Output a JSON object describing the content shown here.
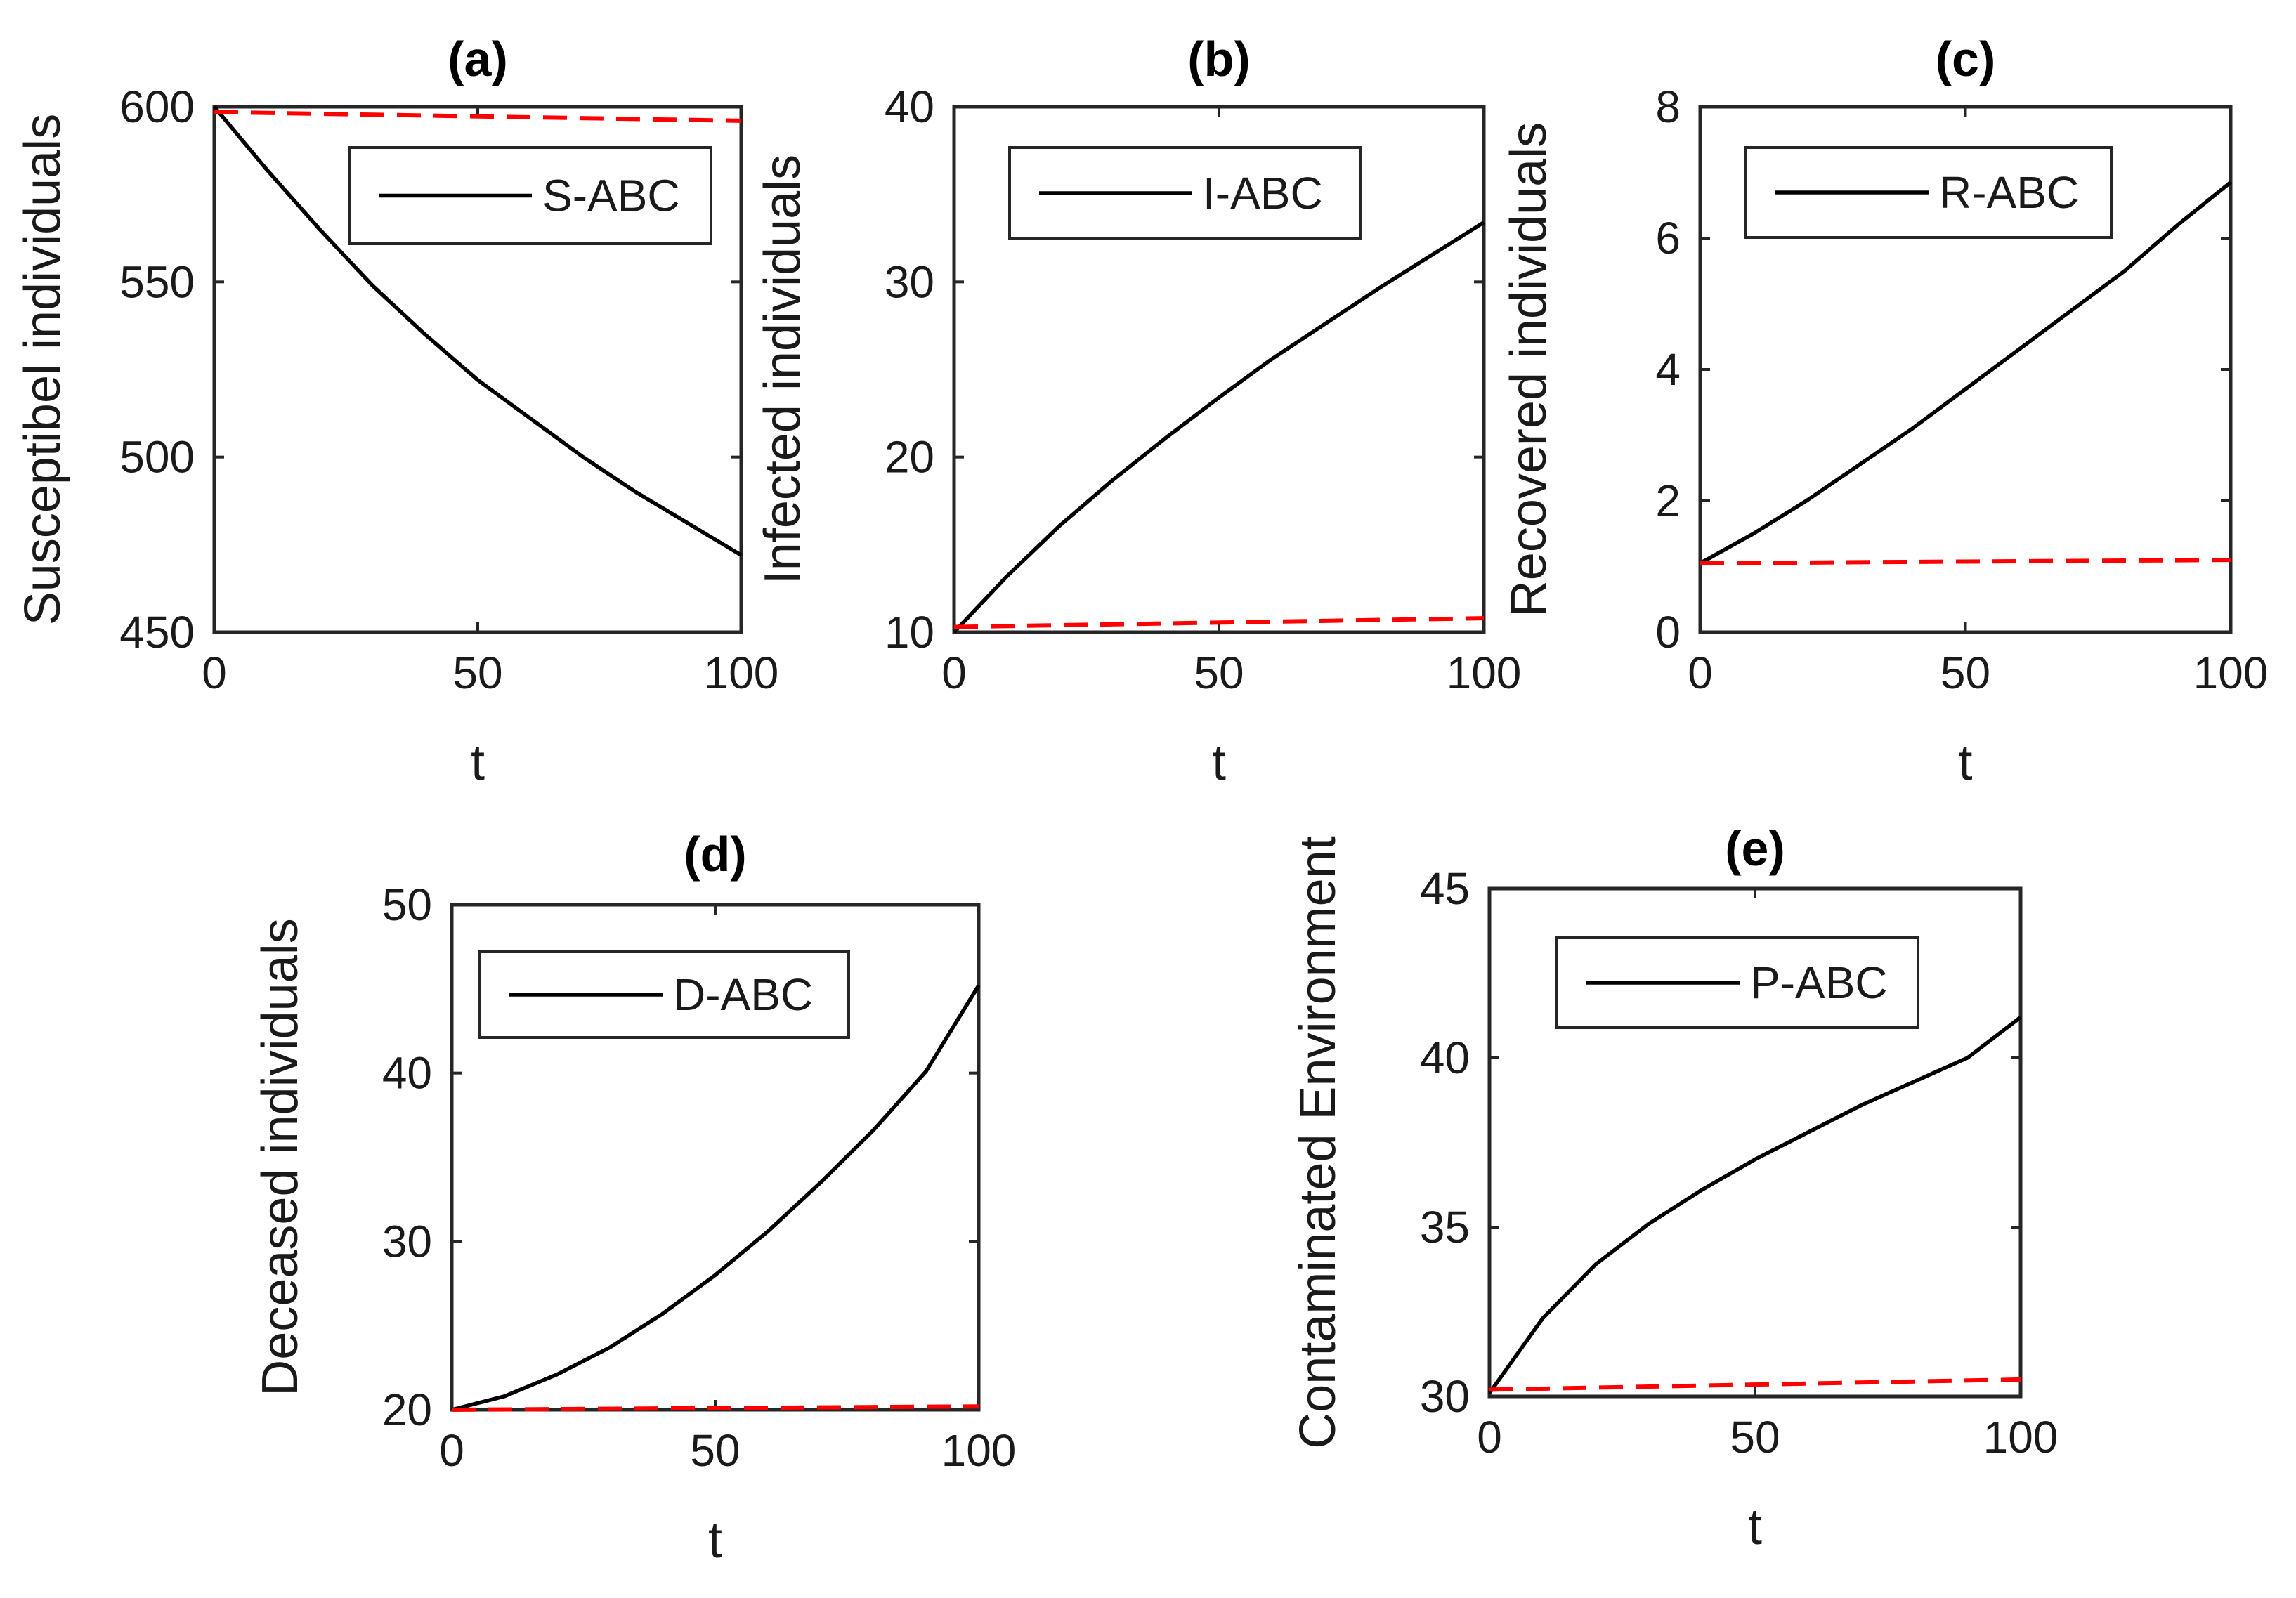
{
  "chart_data": [
    {
      "type": "line",
      "title": "(a)",
      "xlabel": "t",
      "ylabel": "Susceptibel individuals",
      "xlim": [
        0,
        100
      ],
      "ylim": [
        450,
        600
      ],
      "xticks": [
        0,
        50,
        100
      ],
      "yticks": [
        450,
        500,
        550,
        600
      ],
      "legend": {
        "position": "top-right",
        "entries": [
          "S-ABC"
        ]
      },
      "series": [
        {
          "name": "S-ABC",
          "style": "solid",
          "color": "#000000",
          "x": [
            0,
            10,
            20,
            30,
            40,
            50,
            60,
            70,
            80,
            90,
            100
          ],
          "values": [
            600,
            582,
            565,
            549,
            535,
            522,
            511,
            500,
            490,
            481,
            472
          ]
        },
        {
          "name": "",
          "style": "dashed",
          "color": "#ff0000",
          "x": [
            0,
            100
          ],
          "values": [
            598.5,
            596
          ]
        }
      ]
    },
    {
      "type": "line",
      "title": "(b)",
      "xlabel": "t",
      "ylabel": "Infected individuals",
      "xlim": [
        0,
        100
      ],
      "ylim": [
        10,
        40
      ],
      "xticks": [
        0,
        50,
        100
      ],
      "yticks": [
        10,
        20,
        30,
        40
      ],
      "legend": {
        "position": "top-right",
        "entries": [
          "I-ABC"
        ]
      },
      "series": [
        {
          "name": "I-ABC",
          "style": "solid",
          "color": "#000000",
          "x": [
            0,
            10,
            20,
            30,
            40,
            50,
            60,
            70,
            80,
            90,
            100
          ],
          "values": [
            10,
            13.2,
            16.1,
            18.7,
            21.1,
            23.4,
            25.6,
            27.6,
            29.6,
            31.5,
            33.4
          ]
        },
        {
          "name": "",
          "style": "dashed",
          "color": "#ff0000",
          "x": [
            0,
            100
          ],
          "values": [
            10.3,
            10.8
          ]
        }
      ]
    },
    {
      "type": "line",
      "title": "(c)",
      "xlabel": "t",
      "ylabel": "Recovered individuals",
      "xlim": [
        0,
        100
      ],
      "ylim": [
        0,
        8
      ],
      "xticks": [
        0,
        50,
        100
      ],
      "yticks": [
        0,
        2,
        4,
        6,
        8
      ],
      "legend": {
        "position": "top-right",
        "entries": [
          "R-ABC"
        ]
      },
      "series": [
        {
          "name": "R-ABC",
          "style": "solid",
          "color": "#000000",
          "x": [
            0,
            10,
            20,
            30,
            40,
            50,
            60,
            70,
            80,
            90,
            100
          ],
          "values": [
            1.05,
            1.5,
            2.0,
            2.55,
            3.1,
            3.7,
            4.3,
            4.9,
            5.5,
            6.2,
            6.85
          ]
        },
        {
          "name": "",
          "style": "dashed",
          "color": "#ff0000",
          "x": [
            0,
            100
          ],
          "values": [
            1.05,
            1.1
          ]
        }
      ]
    },
    {
      "type": "line",
      "title": "(d)",
      "xlabel": "t",
      "ylabel": "Deceased individuals",
      "xlim": [
        0,
        100
      ],
      "ylim": [
        20,
        50
      ],
      "xticks": [
        0,
        50,
        100
      ],
      "yticks": [
        20,
        30,
        40,
        50
      ],
      "legend": {
        "position": "top-right",
        "entries": [
          "D-ABC"
        ]
      },
      "series": [
        {
          "name": "D-ABC",
          "style": "solid",
          "color": "#000000",
          "x": [
            0,
            10,
            20,
            30,
            40,
            50,
            60,
            70,
            80,
            90,
            100
          ],
          "values": [
            20,
            20.8,
            22.1,
            23.7,
            25.7,
            28.0,
            30.6,
            33.5,
            36.6,
            40.1,
            45.2
          ]
        },
        {
          "name": "",
          "style": "dashed",
          "color": "#ff0000",
          "x": [
            0,
            100
          ],
          "values": [
            20,
            20.2
          ]
        }
      ]
    },
    {
      "type": "line",
      "title": "(e)",
      "xlabel": "t",
      "ylabel": "Contaminated Environment",
      "xlim": [
        0,
        100
      ],
      "ylim": [
        30,
        45
      ],
      "xticks": [
        0,
        50,
        100
      ],
      "yticks": [
        30,
        35,
        40,
        45
      ],
      "legend": {
        "position": "top-right",
        "entries": [
          "P-ABC"
        ]
      },
      "series": [
        {
          "name": "P-ABC",
          "style": "solid",
          "color": "#000000",
          "x": [
            0,
            10,
            20,
            30,
            40,
            50,
            60,
            70,
            80,
            90,
            100
          ],
          "values": [
            30.1,
            32.3,
            33.9,
            35.1,
            36.1,
            37.0,
            37.8,
            38.6,
            39.3,
            40.0,
            41.2
          ]
        },
        {
          "name": "",
          "style": "dashed",
          "color": "#ff0000",
          "x": [
            0,
            100
          ],
          "values": [
            30.2,
            30.5
          ]
        }
      ]
    }
  ]
}
